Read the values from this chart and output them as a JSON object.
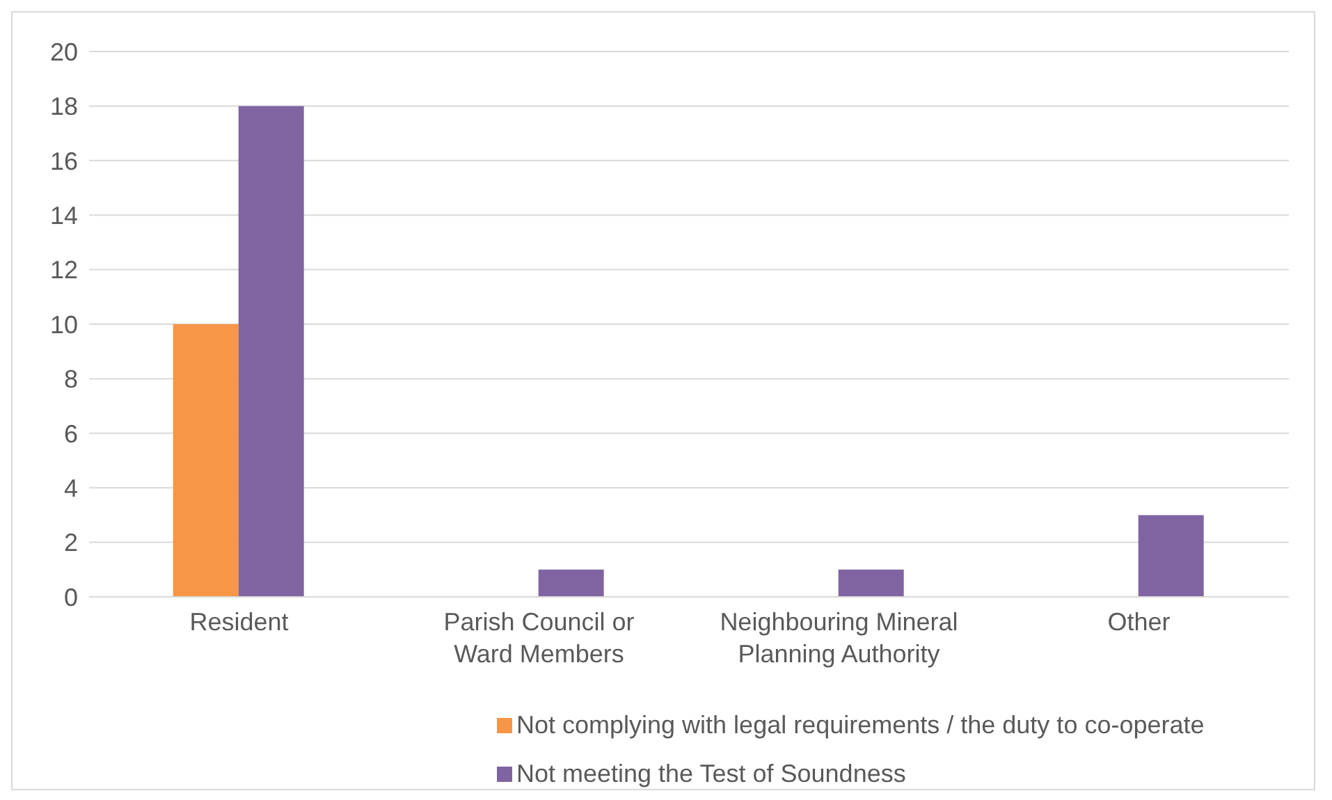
{
  "chart_data": {
    "type": "bar",
    "categories": [
      "Resident",
      "Parish Council or Ward Members",
      "Neighbouring Mineral Planning Authority",
      "Other"
    ],
    "series": [
      {
        "name": "Not complying with legal requirements / the duty to co-operate",
        "color": "#f79646",
        "values": [
          10,
          0,
          0,
          0
        ]
      },
      {
        "name": "Not meeting the Test of Soundness",
        "color": "#8064a2",
        "values": [
          18,
          1,
          1,
          3
        ]
      }
    ],
    "ylim": [
      0,
      20
    ],
    "yticks": [
      0,
      2,
      4,
      6,
      8,
      10,
      12,
      14,
      16,
      18,
      20
    ],
    "grid": "y",
    "legend": "bottom"
  }
}
